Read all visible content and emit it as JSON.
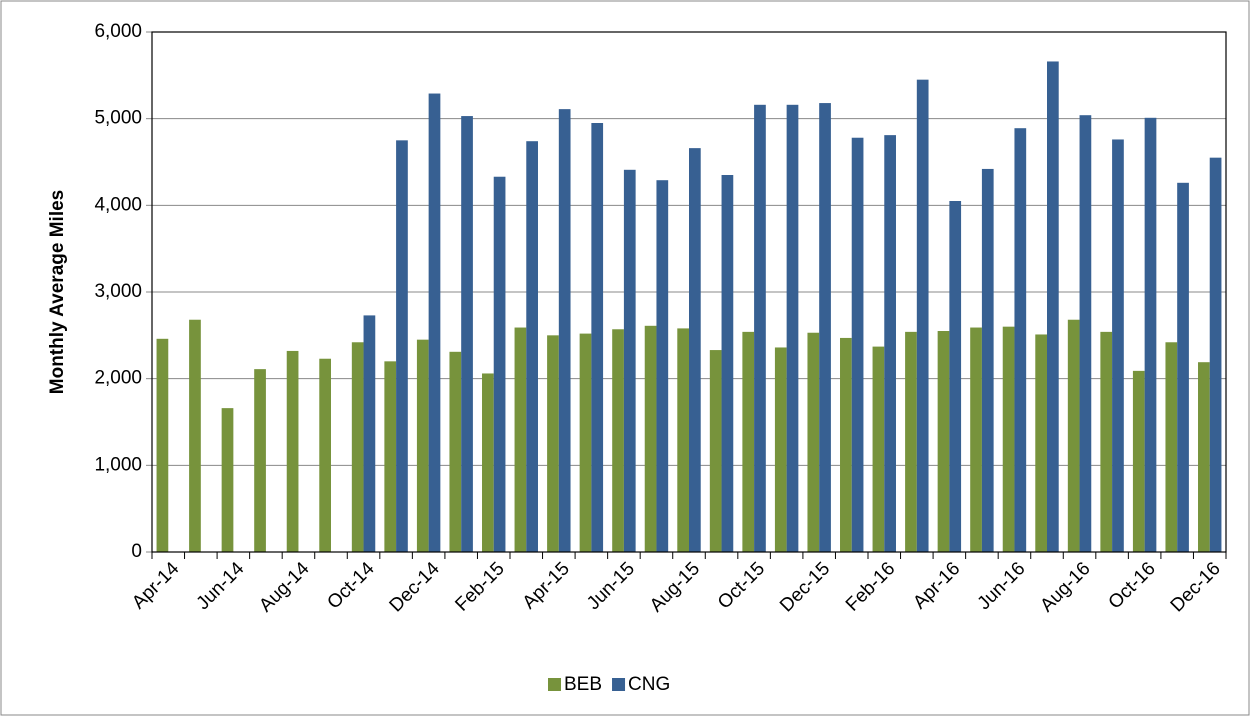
{
  "chart_data": {
    "type": "bar",
    "y_label": "Monthly Average Miles",
    "categories": [
      "Apr-14",
      null,
      "Jun-14",
      null,
      "Aug-14",
      null,
      "Oct-14",
      null,
      "Dec-14",
      null,
      "Feb-15",
      null,
      "Apr-15",
      null,
      "Jun-15",
      null,
      "Aug-15",
      null,
      "Oct-15",
      null,
      "Dec-15",
      null,
      "Feb-16",
      null,
      "Apr-16",
      null,
      "Jun-16",
      null,
      "Aug-16",
      null,
      "Oct-16",
      null,
      "Dec-16"
    ],
    "series": [
      {
        "name": "BEB",
        "color": "#77933c",
        "values": [
          2460,
          2680,
          1660,
          2110,
          2320,
          2230,
          2420,
          2200,
          2450,
          2310,
          2060,
          2590,
          2500,
          2520,
          2570,
          2610,
          2580,
          2330,
          2540,
          2360,
          2530,
          2470,
          2370,
          2540,
          2550,
          2590,
          2600,
          2510,
          2680,
          2540,
          2090,
          2420,
          2190
        ]
      },
      {
        "name": "CNG",
        "color": "#376092",
        "values": [
          null,
          null,
          null,
          null,
          null,
          null,
          2730,
          4750,
          5290,
          5030,
          4330,
          4740,
          5110,
          4950,
          4410,
          4290,
          4660,
          4350,
          5160,
          5160,
          5180,
          4780,
          4810,
          5450,
          4050,
          4420,
          4890,
          5660,
          5040,
          4760,
          5010,
          4260,
          4550
        ]
      }
    ],
    "ylim": [
      0,
      6000
    ],
    "yticks": [
      0,
      {
        "value": 1000,
        "label": "1,000"
      },
      {
        "value": 2000,
        "label": "2,000"
      },
      {
        "value": 3000,
        "label": "3,000"
      },
      {
        "value": 4000,
        "label": "4,000"
      },
      {
        "value": 5000,
        "label": "5,000"
      },
      {
        "value": 6000,
        "label": "6,000"
      }
    ],
    "grid": true,
    "legend": "bottom"
  }
}
